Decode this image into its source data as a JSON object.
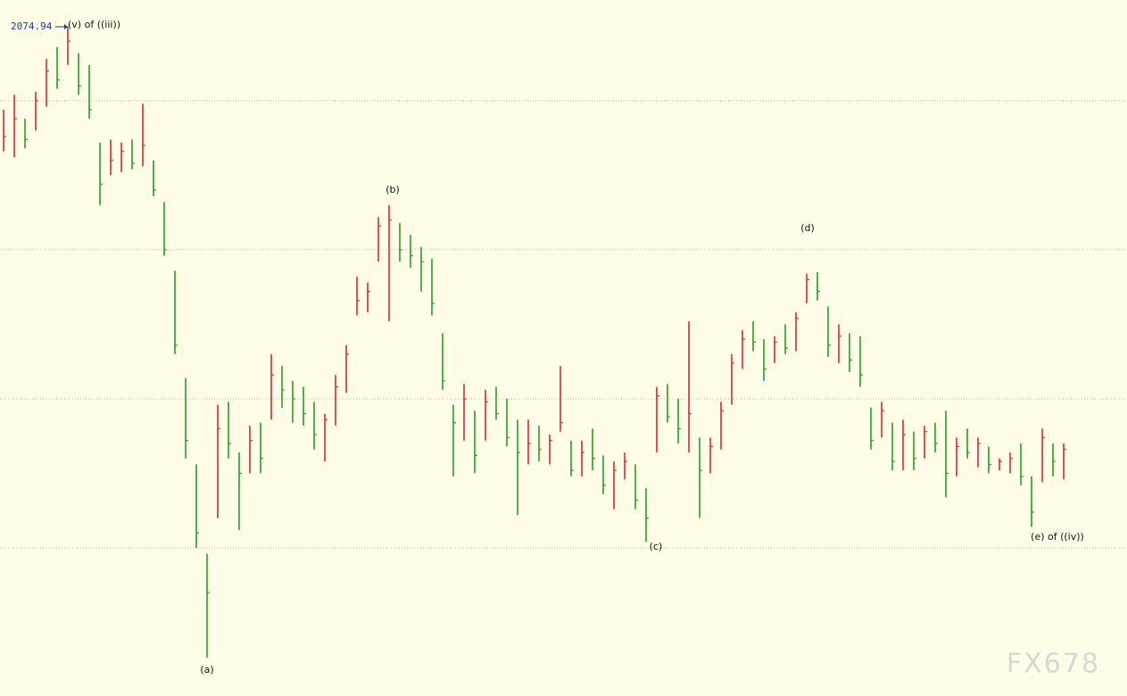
{
  "chart_data": {
    "type": "hlc",
    "ylim": [
      1850.3,
      2083.8
    ],
    "gridlines": [
      1900,
      1950,
      2000,
      2050
    ],
    "up_color": "#d03030",
    "down_color": "#2a9a2a",
    "high": [
      2047,
      2052,
      2044,
      2053,
      2064,
      2068,
      2074.94,
      2066,
      2062,
      2036,
      2037,
      2036,
      2037,
      2049,
      2030,
      2016,
      1993,
      1957,
      1928,
      1898,
      1948,
      1949,
      1932,
      1941,
      1942,
      1965,
      1961,
      1956,
      1954,
      1949,
      1945,
      1958,
      1968,
      1991,
      1989,
      2011,
      2015,
      2009,
      2005,
      2001,
      1997,
      1972,
      1948,
      1955,
      1946,
      1953,
      1954,
      1950,
      1943,
      1943,
      1941,
      1938,
      1961,
      1936,
      1936,
      1940,
      1931,
      1929,
      1932,
      1928,
      1920,
      1954,
      1955,
      1950,
      1976,
      1937,
      1937,
      1949,
      1965,
      1973,
      1976,
      1970,
      1971,
      1975,
      1979,
      1992,
      1992.5,
      1981,
      1975,
      1972,
      1971,
      1947,
      1949,
      1942,
      1943,
      1939,
      1941,
      1942,
      1946,
      1937,
      1940,
      1937,
      1934,
      1930,
      1932,
      1935,
      1924,
      1940,
      1935,
      1935
    ],
    "low": [
      2033,
      2031,
      2034,
      2040,
      2048,
      2054,
      2062,
      2052,
      2044,
      2015,
      2025,
      2026,
      2027,
      2028,
      2018,
      1998,
      1965,
      1930,
      1900,
      1863.1,
      1910,
      1930,
      1906,
      1925,
      1925,
      1943,
      1947,
      1942,
      1941,
      1933,
      1929,
      1941,
      1952,
      1978,
      1979,
      1996,
      1976,
      1996,
      1994,
      1986,
      1978,
      1953,
      1924,
      1936,
      1925,
      1936,
      1943,
      1934,
      1911,
      1928,
      1929,
      1928,
      1939,
      1924,
      1924,
      1926,
      1918,
      1913,
      1923,
      1913,
      1902,
      1932,
      1942,
      1935,
      1932,
      1910,
      1925,
      1933,
      1948,
      1960,
      1966,
      1956,
      1962,
      1965,
      1966,
      1982,
      1983,
      1964,
      1962,
      1959,
      1954,
      1933,
      1937,
      1926,
      1926,
      1926,
      1930,
      1932,
      1917,
      1924,
      1930,
      1927,
      1925,
      1926,
      1925,
      1921,
      1907,
      1922,
      1924,
      1923
    ],
    "close": [
      2038,
      2044,
      2037,
      2050,
      2060,
      2057,
      2070,
      2055,
      2047,
      2022,
      2030,
      2033,
      2029,
      2035,
      2020,
      2000,
      1968,
      1936,
      1905,
      1885,
      1940,
      1935,
      1925,
      1936,
      1930,
      1958,
      1953,
      1950,
      1945,
      1938,
      1943,
      1954,
      1965,
      1983,
      1986,
      2008,
      2010,
      2000,
      1998,
      1996,
      1982,
      1956,
      1942,
      1950,
      1931,
      1949,
      1945,
      1937,
      1932,
      1935,
      1933,
      1936,
      1942,
      1926,
      1932,
      1930,
      1921,
      1926,
      1929,
      1916,
      1910,
      1951,
      1944,
      1940,
      1945,
      1926,
      1934,
      1946,
      1962,
      1970,
      1969,
      1960,
      1969,
      1967,
      1977,
      1990,
      1986,
      1968,
      1971,
      1963,
      1958,
      1936,
      1946,
      1929,
      1938,
      1930,
      1939,
      1935,
      1925,
      1934,
      1932,
      1935,
      1928,
      1929,
      1930,
      1924,
      1912,
      1937,
      1929,
      1933
    ],
    "annotations": [
      "(v) of ((iii))",
      "(b)",
      "(d)",
      "(c)",
      "(a)",
      "(e) of ((iv))"
    ],
    "watermark": "FX678"
  }
}
